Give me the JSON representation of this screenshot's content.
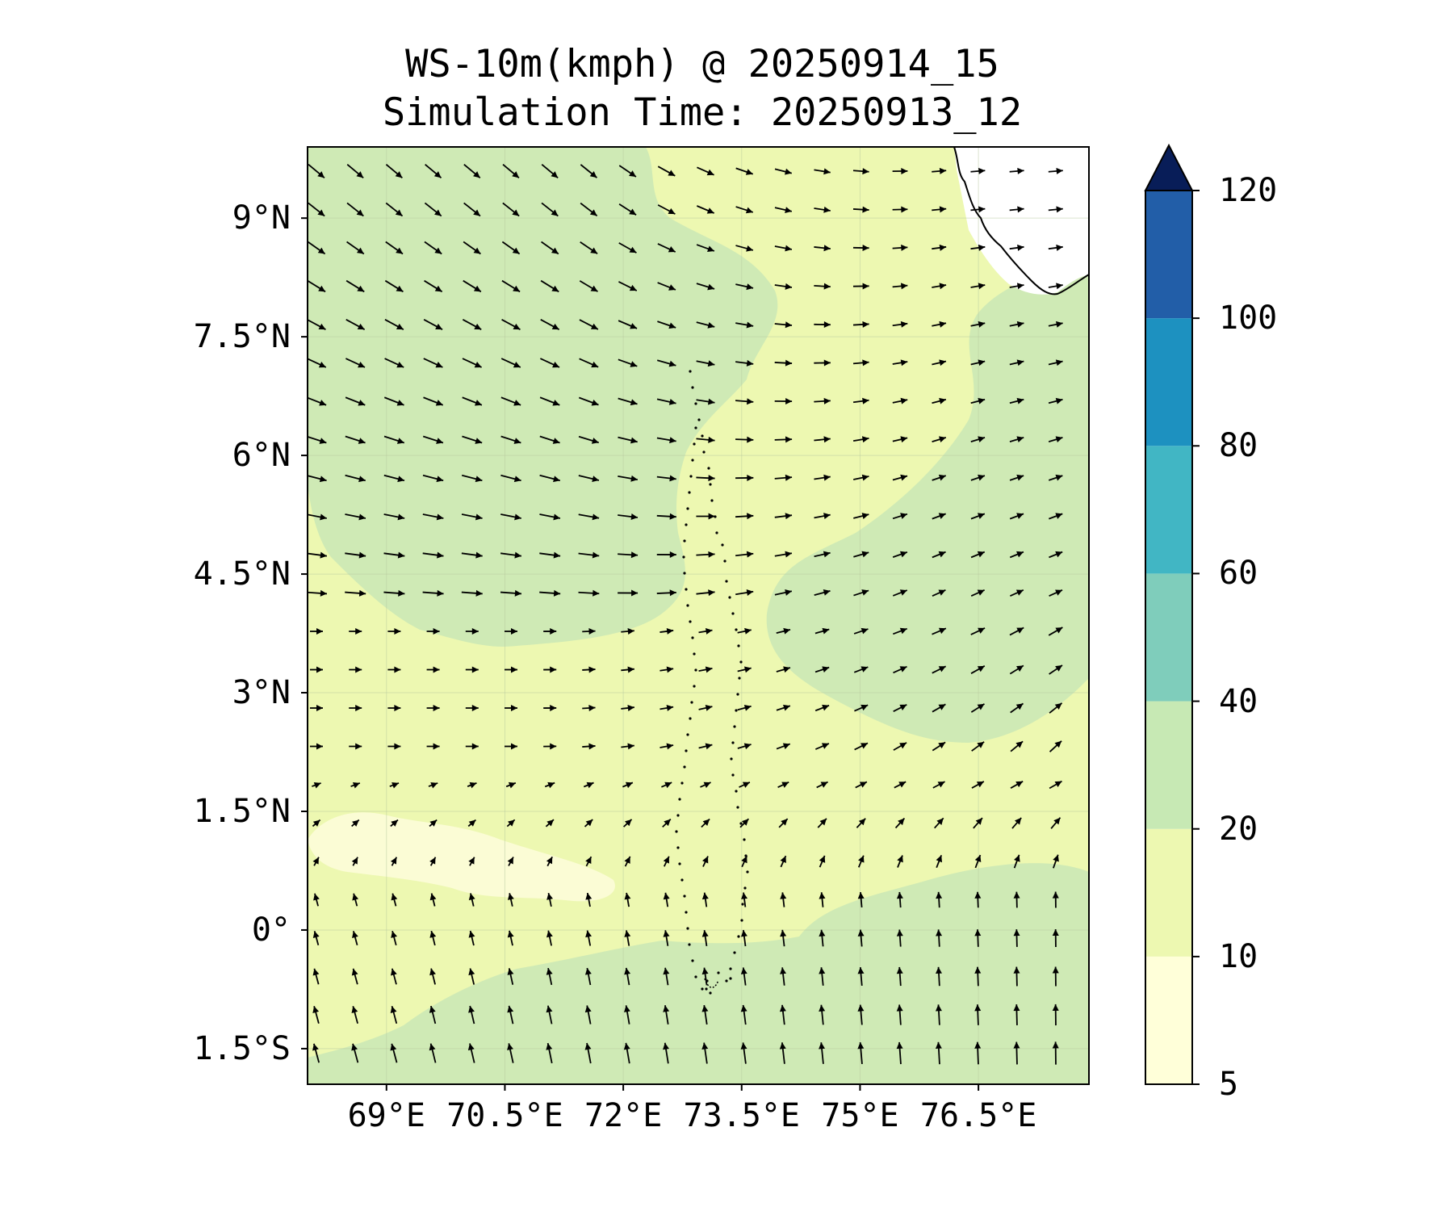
{
  "title": {
    "line1": "WS-10m(kmph) @ 20250914_15",
    "line2": "Simulation Time: 20250913_12"
  },
  "axes": {
    "lat_ticks": [
      "9°N",
      "7.5°N",
      "6°N",
      "4.5°N",
      "3°N",
      "1.5°N",
      "0°",
      "1.5°S"
    ],
    "lat_values": [
      9,
      7.5,
      6,
      4.5,
      3,
      1.5,
      0,
      -1.5
    ],
    "lon_ticks": [
      "69°E",
      "70.5°E",
      "72°E",
      "73.5°E",
      "75°E",
      "76.5°E"
    ],
    "lon_values": [
      69,
      70.5,
      72,
      73.5,
      75,
      76.5
    ],
    "lon_range": [
      68.0,
      77.9
    ],
    "lat_range": [
      -1.95,
      9.9
    ],
    "grid": true
  },
  "colorbar": {
    "levels": [
      "5",
      "10",
      "20",
      "40",
      "60",
      "80",
      "100",
      "120"
    ],
    "level_values": [
      5,
      10,
      20,
      40,
      60,
      80,
      100,
      120
    ],
    "colors": [
      "#ffffd9",
      "#edf8b1",
      "#c7e9b4",
      "#7fcdbb",
      "#41b6c4",
      "#1d91c0",
      "#225ea8",
      "#0c2c84"
    ],
    "extend_color": "#081d58",
    "extend": "max"
  },
  "colors": {
    "base_field": "#edf8b1",
    "moderate_field": "#cfeab5",
    "calm_field": "#fbfcd5",
    "arrow": "#000000",
    "coast": "#000000"
  },
  "chart_data": {
    "type": "heatmap",
    "variable": "WS-10m(kmph)",
    "overlay": "wind vectors",
    "wind_regimes": [
      {
        "region": "north-west (6N-9.9N, 68E-73.5E)",
        "direction": "north-westerly (toward SE)",
        "speed_band": "20-40"
      },
      {
        "region": "central band (2N-5N)",
        "direction": "westerly (toward E)",
        "speed_band": "10-20"
      },
      {
        "region": "east (74E-77.9E, 2N-5N)",
        "direction": "south-westerly (toward NE)",
        "speed_band": "20-40"
      },
      {
        "region": "near equator (0N-1.5N, 69E-72E)",
        "direction": "weak / variable",
        "speed_band": "5-10"
      },
      {
        "region": "south (-1.95N-0N)",
        "direction": "southerly (toward N)",
        "speed_band": "20-40"
      }
    ]
  }
}
